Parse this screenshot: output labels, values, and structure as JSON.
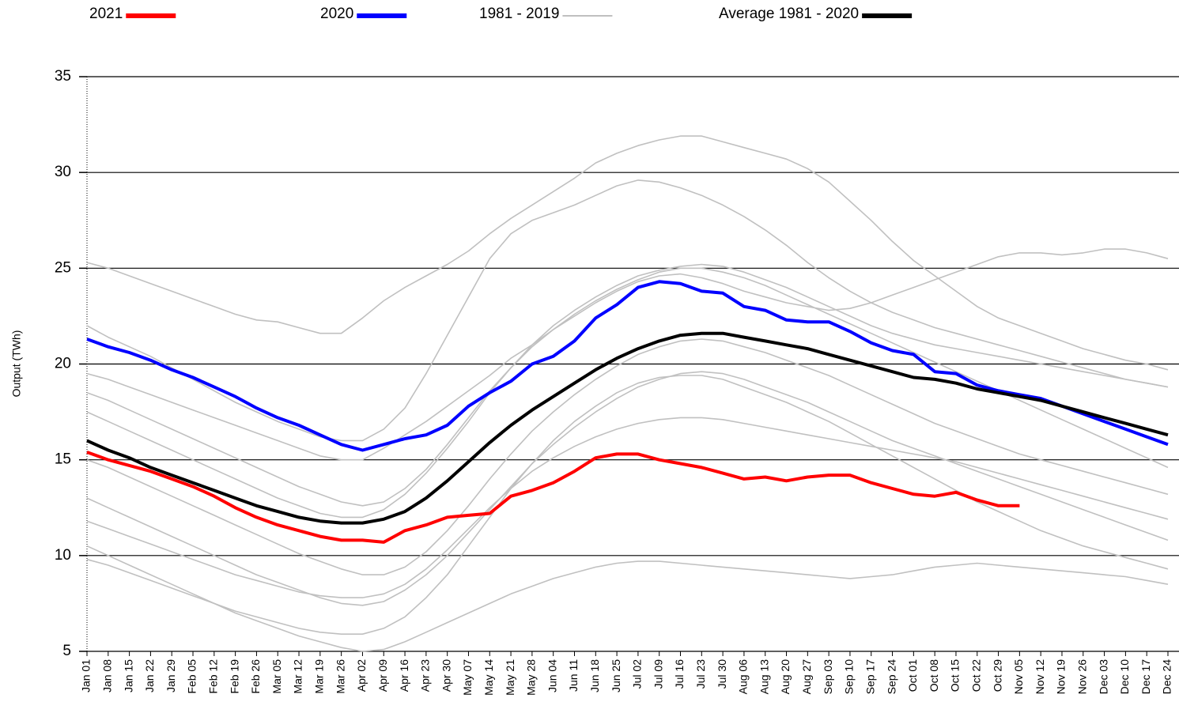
{
  "chart_data": {
    "type": "line",
    "y_label": "Output (TWh)",
    "categories": [
      "Jan 01",
      "Jan 08",
      "Jan 15",
      "Jan 22",
      "Jan 29",
      "Feb 05",
      "Feb 12",
      "Feb 19",
      "Feb 26",
      "Mar 05",
      "Mar 12",
      "Mar 19",
      "Mar 26",
      "Apr 02",
      "Apr 09",
      "Apr 16",
      "Apr 23",
      "Apr 30",
      "May 07",
      "May 14",
      "May 21",
      "May 28",
      "Jun 04",
      "Jun 11",
      "Jun 18",
      "Jun 25",
      "Jul 02",
      "Jul 09",
      "Jul 16",
      "Jul 23",
      "Jul 30",
      "Aug 06",
      "Aug 13",
      "Aug 20",
      "Aug 27",
      "Sep 03",
      "Sep 10",
      "Sep 17",
      "Sep 24",
      "Oct 01",
      "Oct 08",
      "Oct 15",
      "Oct 22",
      "Oct 29",
      "Nov 05",
      "Nov 12",
      "Nov 19",
      "Nov 26",
      "Dec 03",
      "Dec 10",
      "Dec 17",
      "Dec 24"
    ],
    "ylim": [
      5,
      35
    ],
    "yticks": [
      5,
      10,
      15,
      20,
      25,
      30,
      35
    ],
    "grid": true,
    "series": [
      {
        "name": "2021",
        "color": "#ff0000",
        "values": [
          15.4,
          15.0,
          14.7,
          14.4,
          14.0,
          13.6,
          13.1,
          12.5,
          12.0,
          11.6,
          11.3,
          11.0,
          10.8,
          10.8,
          10.7,
          11.3,
          11.6,
          12.0,
          12.1,
          12.2,
          13.1,
          13.4,
          13.8,
          14.4,
          15.1,
          15.3,
          15.3,
          15.0,
          14.8,
          14.6,
          14.3,
          14.0,
          14.1,
          13.9,
          14.1,
          14.2,
          14.2,
          13.8,
          13.5,
          13.2,
          13.1,
          13.3,
          12.9,
          12.6,
          12.6,
          null,
          null,
          null,
          null,
          null,
          null,
          null
        ]
      },
      {
        "name": "2020",
        "color": "#0000ff",
        "values": [
          21.3,
          20.9,
          20.6,
          20.2,
          19.7,
          19.3,
          18.8,
          18.3,
          17.7,
          17.2,
          16.8,
          16.3,
          15.8,
          15.5,
          15.8,
          16.1,
          16.3,
          16.8,
          17.8,
          18.5,
          19.1,
          20.0,
          20.4,
          21.2,
          22.4,
          23.1,
          24.0,
          24.3,
          24.2,
          23.8,
          23.7,
          23.0,
          22.8,
          22.3,
          22.2,
          22.2,
          21.7,
          21.1,
          20.7,
          20.5,
          19.6,
          19.5,
          18.9,
          18.6,
          18.4,
          18.2,
          17.8,
          17.4,
          17.0,
          16.6,
          16.2,
          15.8
        ]
      },
      {
        "name": "1981 - 2019",
        "color": "#c0c0c0",
        "lines": [
          [
            25.3,
            25.0,
            24.6,
            24.2,
            23.8,
            23.4,
            23.0,
            22.6,
            22.3,
            22.2,
            21.9,
            21.6,
            21.6,
            22.4,
            23.3,
            24.0,
            24.6,
            25.2,
            25.9,
            26.8,
            27.6,
            28.3,
            29.0,
            29.7,
            30.5,
            31.0,
            31.4,
            31.7,
            31.9,
            31.9,
            31.6,
            31.3,
            31.0,
            30.7,
            30.2,
            29.5,
            28.5,
            27.5,
            26.4,
            25.4,
            24.6,
            23.8,
            23.0,
            22.4,
            22.0,
            21.6,
            21.2,
            20.8,
            20.5,
            20.2,
            20.0,
            19.7
          ],
          [
            22.0,
            21.4,
            20.9,
            20.4,
            19.8,
            19.2,
            18.6,
            18.0,
            17.5,
            17.0,
            16.6,
            16.2,
            16.0,
            16.0,
            16.6,
            17.7,
            19.5,
            21.5,
            23.5,
            25.5,
            26.8,
            27.5,
            27.9,
            28.3,
            28.8,
            29.3,
            29.6,
            29.5,
            29.2,
            28.8,
            28.3,
            27.7,
            27.0,
            26.2,
            25.3,
            24.5,
            23.8,
            23.2,
            22.7,
            22.3,
            21.9,
            21.6,
            21.3,
            21.0,
            20.7,
            20.4,
            20.1,
            19.8,
            19.5,
            19.2,
            19.0,
            18.8
          ],
          [
            19.5,
            19.2,
            18.8,
            18.4,
            18.0,
            17.6,
            17.2,
            16.8,
            16.4,
            16.0,
            15.6,
            15.2,
            15.0,
            15.0,
            15.6,
            16.3,
            17.0,
            17.8,
            18.6,
            19.4,
            20.3,
            21.0,
            21.8,
            22.5,
            23.2,
            23.8,
            24.3,
            24.6,
            24.7,
            24.5,
            24.2,
            23.8,
            23.5,
            23.2,
            23.0,
            22.8,
            22.9,
            23.2,
            23.6,
            24.0,
            24.4,
            24.8,
            25.2,
            25.6,
            25.8,
            25.8,
            25.7,
            25.8,
            26.0,
            26.0,
            25.8,
            25.5
          ],
          [
            10.5,
            10.0,
            9.5,
            9.0,
            8.5,
            8.0,
            7.5,
            7.0,
            6.6,
            6.2,
            5.8,
            5.5,
            5.2,
            5.0,
            5.1,
            5.5,
            6.0,
            6.5,
            7.0,
            7.5,
            8.0,
            8.4,
            8.8,
            9.1,
            9.4,
            9.6,
            9.7,
            9.7,
            9.6,
            9.5,
            9.4,
            9.3,
            9.2,
            9.1,
            9.0,
            8.9,
            8.8,
            8.9,
            9.0,
            9.2,
            9.4,
            9.5,
            9.6,
            9.5,
            9.4,
            9.3,
            9.2,
            9.1,
            9.0,
            8.9,
            8.7,
            8.5
          ],
          [
            9.8,
            9.5,
            9.1,
            8.7,
            8.3,
            7.9,
            7.5,
            7.1,
            6.8,
            6.5,
            6.2,
            6.0,
            5.9,
            5.9,
            6.2,
            6.8,
            7.8,
            9.0,
            10.5,
            12.0,
            13.5,
            14.8,
            16.0,
            17.0,
            17.8,
            18.5,
            19.0,
            19.3,
            19.4,
            19.4,
            19.2,
            18.8,
            18.4,
            18.0,
            17.5,
            17.0,
            16.4,
            15.8,
            15.2,
            14.6,
            14.0,
            13.4,
            12.8,
            12.3,
            11.8,
            11.3,
            10.9,
            10.5,
            10.2,
            9.9,
            9.6,
            9.3
          ],
          [
            17.5,
            17.0,
            16.5,
            16.0,
            15.5,
            15.0,
            14.5,
            14.0,
            13.5,
            13.0,
            12.6,
            12.2,
            12.0,
            12.0,
            12.4,
            13.2,
            14.3,
            15.6,
            17.0,
            18.5,
            19.8,
            21.0,
            22.0,
            22.8,
            23.5,
            24.1,
            24.6,
            24.9,
            25.1,
            25.2,
            25.1,
            24.8,
            24.4,
            24.0,
            23.5,
            23.0,
            22.5,
            22.0,
            21.6,
            21.3,
            21.0,
            20.8,
            20.6,
            20.4,
            20.2,
            20.0,
            19.8,
            19.6,
            19.4,
            19.2,
            19.0,
            18.8
          ],
          [
            13.0,
            12.5,
            12.0,
            11.5,
            11.0,
            10.5,
            10.0,
            9.5,
            9.0,
            8.6,
            8.2,
            7.8,
            7.5,
            7.4,
            7.6,
            8.2,
            9.0,
            10.0,
            11.2,
            12.4,
            13.6,
            14.8,
            15.8,
            16.7,
            17.5,
            18.2,
            18.8,
            19.2,
            19.5,
            19.6,
            19.5,
            19.2,
            18.8,
            18.4,
            18.0,
            17.5,
            17.0,
            16.5,
            16.0,
            15.6,
            15.2,
            14.8,
            14.4,
            14.0,
            13.6,
            13.2,
            12.8,
            12.4,
            12.0,
            11.6,
            11.2,
            10.8
          ],
          [
            18.5,
            18.1,
            17.6,
            17.1,
            16.6,
            16.1,
            15.6,
            15.1,
            14.6,
            14.1,
            13.6,
            13.2,
            12.8,
            12.6,
            12.8,
            13.5,
            14.5,
            15.8,
            17.2,
            18.6,
            19.8,
            20.9,
            21.8,
            22.6,
            23.3,
            23.9,
            24.4,
            24.8,
            25.0,
            25.0,
            24.8,
            24.5,
            24.1,
            23.6,
            23.1,
            22.6,
            22.1,
            21.6,
            21.1,
            20.6,
            20.1,
            19.6,
            19.1,
            18.6,
            18.1,
            17.6,
            17.1,
            16.6,
            16.1,
            15.6,
            15.1,
            14.6
          ],
          [
            15.0,
            14.6,
            14.1,
            13.6,
            13.1,
            12.6,
            12.1,
            11.6,
            11.1,
            10.6,
            10.1,
            9.7,
            9.3,
            9.0,
            9.0,
            9.4,
            10.2,
            11.3,
            12.6,
            14.0,
            15.3,
            16.5,
            17.5,
            18.4,
            19.2,
            19.9,
            20.5,
            20.9,
            21.2,
            21.3,
            21.2,
            20.9,
            20.6,
            20.2,
            19.8,
            19.4,
            18.9,
            18.4,
            17.9,
            17.4,
            16.9,
            16.5,
            16.1,
            15.7,
            15.3,
            15.0,
            14.7,
            14.4,
            14.1,
            13.8,
            13.5,
            13.2
          ],
          [
            11.8,
            11.4,
            11.0,
            10.6,
            10.2,
            9.8,
            9.4,
            9.0,
            8.7,
            8.4,
            8.1,
            7.9,
            7.8,
            7.8,
            8.0,
            8.5,
            9.3,
            10.3,
            11.4,
            12.5,
            13.5,
            14.4,
            15.1,
            15.7,
            16.2,
            16.6,
            16.9,
            17.1,
            17.2,
            17.2,
            17.1,
            16.9,
            16.7,
            16.5,
            16.3,
            16.1,
            15.9,
            15.7,
            15.5,
            15.3,
            15.1,
            14.9,
            14.6,
            14.3,
            14.0,
            13.7,
            13.4,
            13.1,
            12.8,
            12.5,
            12.2,
            11.9
          ]
        ]
      },
      {
        "name": "Average 1981 - 2020",
        "color": "#000000",
        "values": [
          16.0,
          15.5,
          15.1,
          14.6,
          14.2,
          13.8,
          13.4,
          13.0,
          12.6,
          12.3,
          12.0,
          11.8,
          11.7,
          11.7,
          11.9,
          12.3,
          13.0,
          13.9,
          14.9,
          15.9,
          16.8,
          17.6,
          18.3,
          19.0,
          19.7,
          20.3,
          20.8,
          21.2,
          21.5,
          21.6,
          21.6,
          21.4,
          21.2,
          21.0,
          20.8,
          20.5,
          20.2,
          19.9,
          19.6,
          19.3,
          19.2,
          19.0,
          18.7,
          18.5,
          18.3,
          18.1,
          17.8,
          17.5,
          17.2,
          16.9,
          16.6,
          16.3
        ]
      }
    ]
  }
}
